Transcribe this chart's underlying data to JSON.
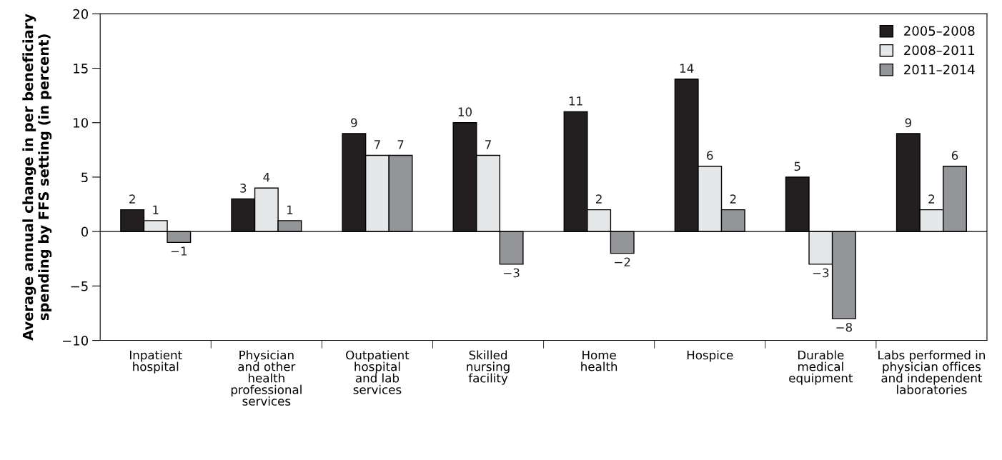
{
  "chart_data": {
    "type": "bar",
    "ylabel": "Average annual change in per beneficiary\nspending by FFS setting (in percent)",
    "categories": [
      "Inpatient\nhospital",
      "Physician\nand other\nhealth\nprofessional\nservices",
      "Outpatient\nhospital\nand lab\nservices",
      "Skilled\nnursing\nfacility",
      "Home\nhealth",
      "Hospice",
      "Durable\nmedical\nequipment",
      "Labs performed in\nphysician offices\nand independent\nlaboratories"
    ],
    "series": [
      {
        "name": "2005–2008",
        "color": "#231f20",
        "values": [
          2,
          3,
          9,
          10,
          11,
          14,
          5,
          9
        ],
        "value_labels": [
          "2",
          "3",
          "9",
          "10",
          "11",
          "14",
          "5",
          "9"
        ]
      },
      {
        "name": "2008–2011",
        "color": "#e6e7e8",
        "values": [
          1,
          4,
          7,
          7,
          2,
          6,
          -3,
          2
        ],
        "value_labels": [
          "1",
          "4",
          "7",
          "7",
          "2",
          "6",
          "−3",
          "2"
        ]
      },
      {
        "name": "2011–2014",
        "color": "#939598",
        "values": [
          -1,
          1,
          7,
          -3,
          -2,
          2,
          -8,
          6
        ],
        "value_labels": [
          "−1",
          "1",
          "7",
          "−3",
          "−2",
          "2",
          "−8",
          "6"
        ]
      }
    ],
    "ylim": [
      -10,
      20
    ],
    "yticks": [
      {
        "value": -10,
        "label": "−10"
      },
      {
        "value": -5,
        "label": "−5"
      },
      0,
      5,
      10,
      15,
      20
    ],
    "ref_lines": [
      {
        "axis": "y",
        "value": 0,
        "color": "#000000"
      }
    ],
    "legend": "top right",
    "grid": false
  }
}
